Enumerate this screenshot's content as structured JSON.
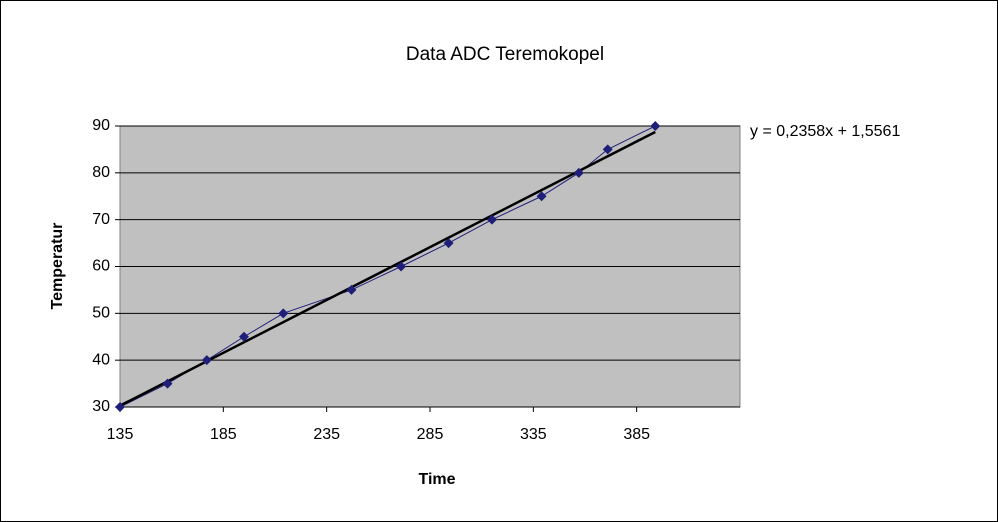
{
  "chart_data": {
    "type": "scatter",
    "title": "Data ADC Teremokopel",
    "x_label": "Time",
    "y_label": "Temperatur",
    "trendline_label": "y = 0,2358x + 1,5561",
    "xlim": [
      135,
      435
    ],
    "xticks": [
      135,
      185,
      235,
      285,
      335,
      385
    ],
    "ylim": [
      30,
      90
    ],
    "yticks": [
      30,
      40,
      50,
      60,
      70,
      80,
      90
    ],
    "grid": true,
    "series": [
      {
        "color": "#1f1f7a",
        "x": [
          135,
          158,
          177,
          195,
          214,
          247,
          271,
          294,
          315,
          339,
          357,
          371,
          394
        ],
        "values": [
          30,
          35,
          40,
          45,
          50,
          55,
          60,
          65,
          70,
          75,
          80,
          85,
          90
        ]
      }
    ],
    "trendline_color": "#000000"
  }
}
